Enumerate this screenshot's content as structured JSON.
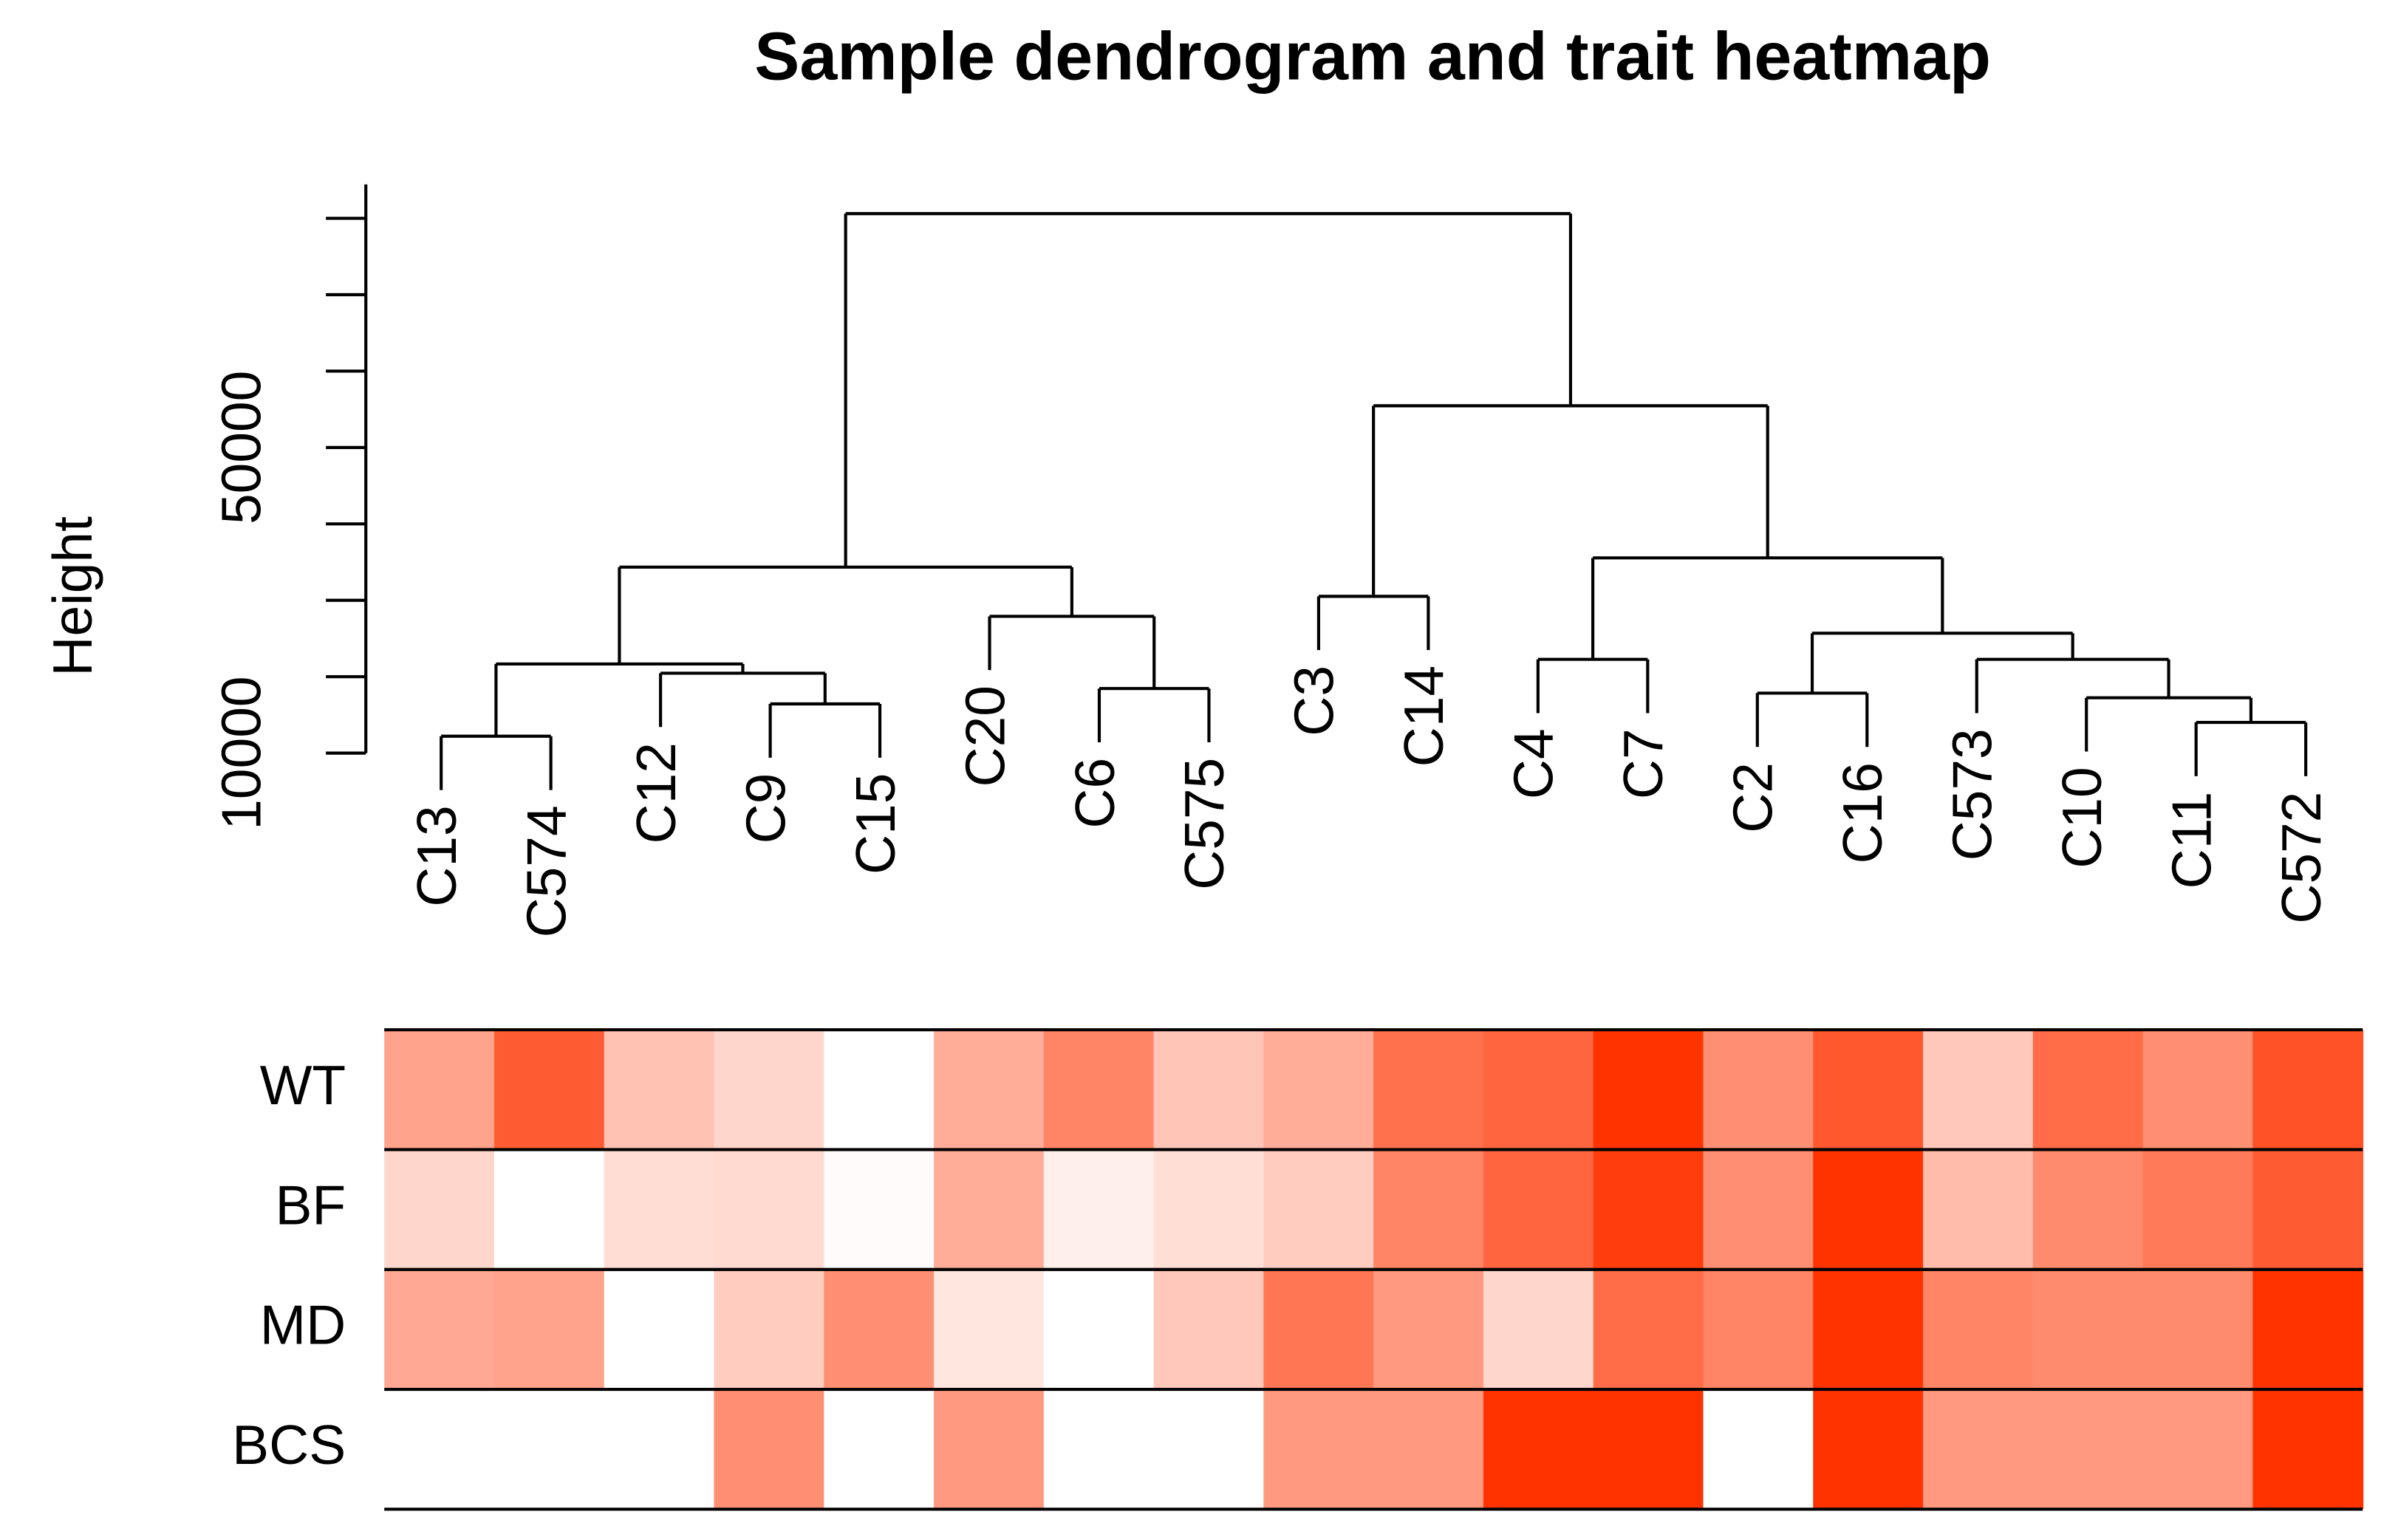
{
  "chart_data": {
    "type": "dendrogram-heatmap",
    "title": "Sample dendrogram and trait heatmap",
    "ylabel": "Height",
    "ylim": [
      10000,
      84430
    ],
    "yticks": [
      10000,
      20000,
      30000,
      40000,
      50000,
      60000,
      70000,
      80000
    ],
    "ytick_labels": [
      10000,
      50000
    ],
    "leaves": [
      "C13",
      "C574",
      "C12",
      "C9",
      "C15",
      "C20",
      "C6",
      "C575",
      "C3",
      "C14",
      "C4",
      "C7",
      "C2",
      "C16",
      "C573",
      "C10",
      "C11",
      "C572"
    ],
    "merges": [
      [
        -1,
        -2,
        12210
      ],
      [
        -4,
        -5,
        16440
      ],
      [
        -3,
        2,
        20460
      ],
      [
        1,
        3,
        21670
      ],
      [
        -7,
        -8,
        18450
      ],
      [
        -6,
        5,
        27900
      ],
      [
        4,
        6,
        34340
      ],
      [
        -9,
        -10,
        30520
      ],
      [
        -11,
        -12,
        22270
      ],
      [
        -13,
        -14,
        17850
      ],
      [
        -17,
        -18,
        14020
      ],
      [
        -16,
        11,
        17240
      ],
      [
        -15,
        12,
        22270
      ],
      [
        10,
        13,
        25690
      ],
      [
        9,
        14,
        35550
      ],
      [
        8,
        15,
        55460
      ],
      [
        7,
        16,
        80610
      ]
    ],
    "color_low": "#ffffff",
    "color_high": "#ff3300",
    "traits": [
      {
        "name": "WT",
        "values": [
          0.45,
          0.8,
          0.3,
          0.2,
          0,
          0.4,
          0.6,
          0.28,
          0.4,
          0.7,
          0.75,
          1,
          0.55,
          0.82,
          0.27,
          0.72,
          0.55,
          0.85
        ]
      },
      {
        "name": "BF",
        "values": [
          0.2,
          0,
          0.17,
          0.18,
          0.02,
          0.4,
          0.08,
          0.16,
          0.25,
          0.6,
          0.75,
          0.95,
          0.55,
          1,
          0.33,
          0.57,
          0.65,
          0.8
        ]
      },
      {
        "name": "MD",
        "values": [
          0.42,
          0.45,
          0,
          0.25,
          0.55,
          0.12,
          0,
          0.27,
          0.67,
          0.5,
          0.2,
          0.72,
          0.6,
          1,
          0.6,
          0.57,
          0.57,
          1
        ]
      },
      {
        "name": "BCS",
        "values": [
          0,
          0,
          0,
          0.55,
          0,
          0.5,
          0,
          0,
          0.5,
          0.5,
          1,
          1,
          0,
          1,
          0.5,
          0.5,
          0.5,
          1
        ]
      }
    ]
  }
}
